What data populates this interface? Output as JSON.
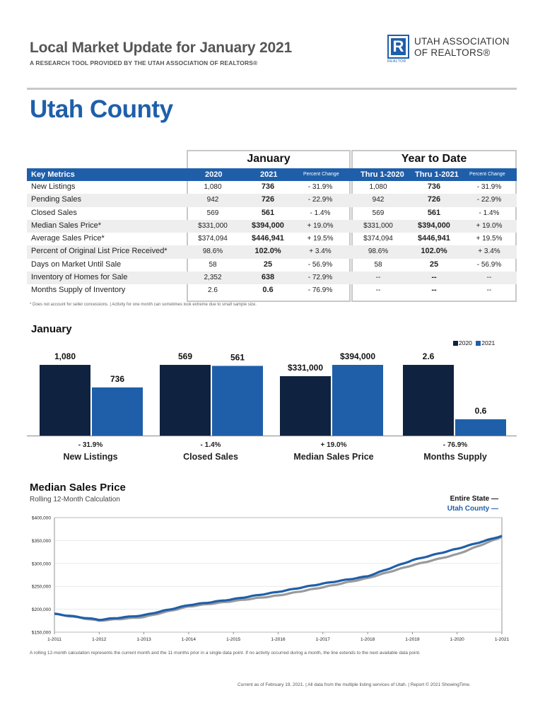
{
  "header": {
    "title": "Local Market Update for January 2021",
    "subtitle": "A RESEARCH TOOL PROVIDED BY THE UTAH ASSOCIATION OF REALTORS®",
    "logo_line1": "UTAH ASSOCIATION",
    "logo_line2": "OF REALTORS®",
    "logo_mark": "R",
    "logo_sub": "REALTOR"
  },
  "region": "Utah County",
  "table": {
    "group_january": "January",
    "group_ytd": "Year to Date",
    "col_metric": "Key Metrics",
    "col_2020": "2020",
    "col_2021": "2021",
    "col_pct": "Percent Change",
    "col_ytd_2020": "Thru 1-2020",
    "col_ytd_2021": "Thru 1-2021",
    "col_ytd_pct": "Percent Change",
    "rows": [
      {
        "metric": "New Listings",
        "v2020": "1,080",
        "v2021": "736",
        "pct": "- 31.9%",
        "y2020": "1,080",
        "y2021": "736",
        "ypct": "- 31.9%"
      },
      {
        "metric": "Pending Sales",
        "v2020": "942",
        "v2021": "726",
        "pct": "- 22.9%",
        "y2020": "942",
        "y2021": "726",
        "ypct": "- 22.9%"
      },
      {
        "metric": "Closed Sales",
        "v2020": "569",
        "v2021": "561",
        "pct": "- 1.4%",
        "y2020": "569",
        "y2021": "561",
        "ypct": "- 1.4%"
      },
      {
        "metric": "Median Sales Price*",
        "v2020": "$331,000",
        "v2021": "$394,000",
        "pct": "+ 19.0%",
        "y2020": "$331,000",
        "y2021": "$394,000",
        "ypct": "+ 19.0%"
      },
      {
        "metric": "Average Sales Price*",
        "v2020": "$374,094",
        "v2021": "$446,941",
        "pct": "+ 19.5%",
        "y2020": "$374,094",
        "y2021": "$446,941",
        "ypct": "+ 19.5%"
      },
      {
        "metric": "Percent of Original List Price Received*",
        "v2020": "98.6%",
        "v2021": "102.0%",
        "pct": "+ 3.4%",
        "y2020": "98.6%",
        "y2021": "102.0%",
        "ypct": "+ 3.4%"
      },
      {
        "metric": "Days on Market Until Sale",
        "v2020": "58",
        "v2021": "25",
        "pct": "- 56.9%",
        "y2020": "58",
        "y2021": "25",
        "ypct": "- 56.9%"
      },
      {
        "metric": "Inventory of Homes for Sale",
        "v2020": "2,352",
        "v2021": "638",
        "pct": "- 72.9%",
        "y2020": "--",
        "y2021": "--",
        "ypct": "--"
      },
      {
        "metric": "Months Supply of Inventory",
        "v2020": "2.6",
        "v2021": "0.6",
        "pct": "- 76.9%",
        "y2020": "--",
        "y2021": "--",
        "ypct": "--"
      }
    ],
    "footnote": "* Does not account for seller concessions.  |  Activity for one month can sometimes look extreme due to small sample size."
  },
  "chart_data": [
    {
      "type": "bar",
      "title": "January",
      "categories": [
        "New Listings",
        "Closed Sales",
        "Median Sales Price",
        "Months Supply"
      ],
      "series": [
        {
          "name": "2020",
          "color": "#0f2340",
          "values": [
            1080,
            569,
            331000,
            2.6
          ],
          "labels": [
            "1,080",
            "569",
            "$331,000",
            "2.6"
          ]
        },
        {
          "name": "2021",
          "color": "#1f5faa",
          "values": [
            736,
            561,
            394000,
            0.6
          ],
          "labels": [
            "736",
            "561",
            "$394,000",
            "0.6"
          ]
        }
      ],
      "percent_changes": [
        "- 31.9%",
        "- 1.4%",
        "+ 19.0%",
        "- 76.9%"
      ],
      "legend": "top-right"
    },
    {
      "type": "line",
      "title": "Median Sales Price",
      "subtitle": "Rolling 12-Month Calculation",
      "x_ticks": [
        "1-2011",
        "1-2012",
        "1-2013",
        "1-2014",
        "1-2015",
        "1-2016",
        "1-2017",
        "1-2018",
        "1-2019",
        "1-2020",
        "1-2021"
      ],
      "y_ticks": [
        "$150,000",
        "$200,000",
        "$250,000",
        "$300,000",
        "$350,000",
        "$400,000"
      ],
      "ylim": [
        150000,
        400000
      ],
      "series": [
        {
          "name": "Entire State",
          "color": "#9a9a9a",
          "values": [
            190000,
            175000,
            183000,
            206000,
            218000,
            230000,
            248000,
            268000,
            296000,
            320000,
            358000
          ]
        },
        {
          "name": "Utah County",
          "color": "#1f5faa",
          "values": [
            190000,
            177000,
            187000,
            209000,
            222000,
            238000,
            256000,
            272000,
            307000,
            332000,
            360000
          ]
        }
      ],
      "legend": "top-right",
      "note": "A rolling 12-month calculation represents the current month and the 11 months prior in a single data point. If no activity occurred during a month, the line extends to the next available data point."
    }
  ],
  "footer": "Current as of February 19, 2021.  |  All data from the multiple listing services of Utah.  |  Report © 2021 ShowingTime."
}
